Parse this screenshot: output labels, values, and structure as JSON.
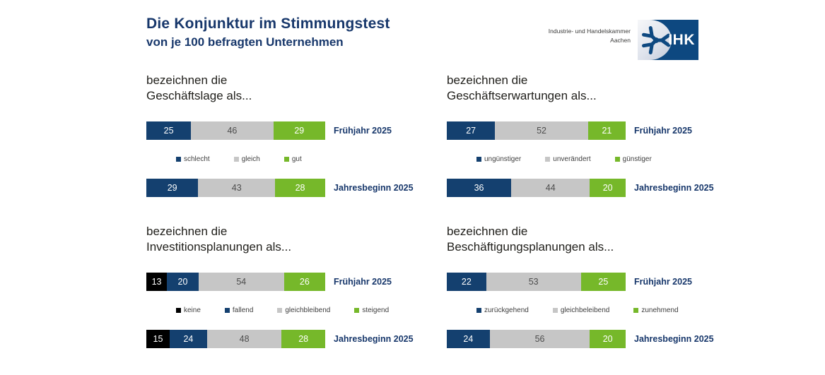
{
  "title": {
    "line1": "Die Konjunktur im Stimmungstest",
    "line2": "von je 100 befragten Unternehmen"
  },
  "logo": {
    "org_name_line1": "Industrie- und Handelskammer",
    "org_name_line2": "Aachen",
    "brand": "IHK"
  },
  "colors": {
    "navy": "#14406f",
    "gray": "#c6c6c6",
    "green": "#76b82a",
    "black": "#000000",
    "title_text": "#17376b",
    "gray_segment_text": "#4d4d4d"
  },
  "chart_data": [
    {
      "id": "geschaeftslage",
      "type": "bar",
      "orientation": "horizontal-stacked",
      "heading_line1": "bezeichnen die",
      "heading_line2": "Geschäftslage als...",
      "scale_max": 100,
      "legend": [
        {
          "label": "schlecht",
          "color": "navy"
        },
        {
          "label": "gleich",
          "color": "gray"
        },
        {
          "label": "gut",
          "color": "green"
        }
      ],
      "rows": [
        {
          "label": "Frühjahr 2025",
          "values": [
            25,
            46,
            29
          ]
        },
        {
          "label": "Jahresbeginn 2025",
          "values": [
            29,
            43,
            28
          ]
        }
      ]
    },
    {
      "id": "geschaeftserwartungen",
      "type": "bar",
      "orientation": "horizontal-stacked",
      "heading_line1": "bezeichnen die",
      "heading_line2": "Geschäftserwartungen als...",
      "scale_max": 100,
      "legend": [
        {
          "label": "ungünstiger",
          "color": "navy"
        },
        {
          "label": "unverändert",
          "color": "gray"
        },
        {
          "label": "günstiger",
          "color": "green"
        }
      ],
      "rows": [
        {
          "label": "Frühjahr 2025",
          "values": [
            27,
            52,
            21
          ]
        },
        {
          "label": "Jahresbeginn 2025",
          "values": [
            36,
            44,
            20
          ]
        }
      ]
    },
    {
      "id": "investitionsplanungen",
      "type": "bar",
      "orientation": "horizontal-stacked",
      "heading_line1": "bezeichnen die",
      "heading_line2": "Investitionsplanungen als...",
      "scale_max": 100,
      "legend": [
        {
          "label": "keine",
          "color": "black"
        },
        {
          "label": "fallend",
          "color": "navy"
        },
        {
          "label": "gleichbleibend",
          "color": "gray"
        },
        {
          "label": "steigend",
          "color": "green"
        }
      ],
      "rows": [
        {
          "label": "Frühjahr 2025",
          "values": [
            13,
            20,
            54,
            26
          ]
        },
        {
          "label": "Jahresbeginn 2025",
          "values": [
            15,
            24,
            48,
            28
          ]
        }
      ]
    },
    {
      "id": "beschaeftigungsplanungen",
      "type": "bar",
      "orientation": "horizontal-stacked",
      "heading_line1": "bezeichnen die",
      "heading_line2": "Beschäftigungsplanungen als...",
      "scale_max": 100,
      "legend": [
        {
          "label": "zurückgehend",
          "color": "navy"
        },
        {
          "label": "gleichbeleibend",
          "color": "gray"
        },
        {
          "label": "zunehmend",
          "color": "green"
        }
      ],
      "rows": [
        {
          "label": "Frühjahr 2025",
          "values": [
            22,
            53,
            25
          ]
        },
        {
          "label": "Jahresbeginn 2025",
          "values": [
            24,
            56,
            20
          ]
        }
      ]
    }
  ]
}
